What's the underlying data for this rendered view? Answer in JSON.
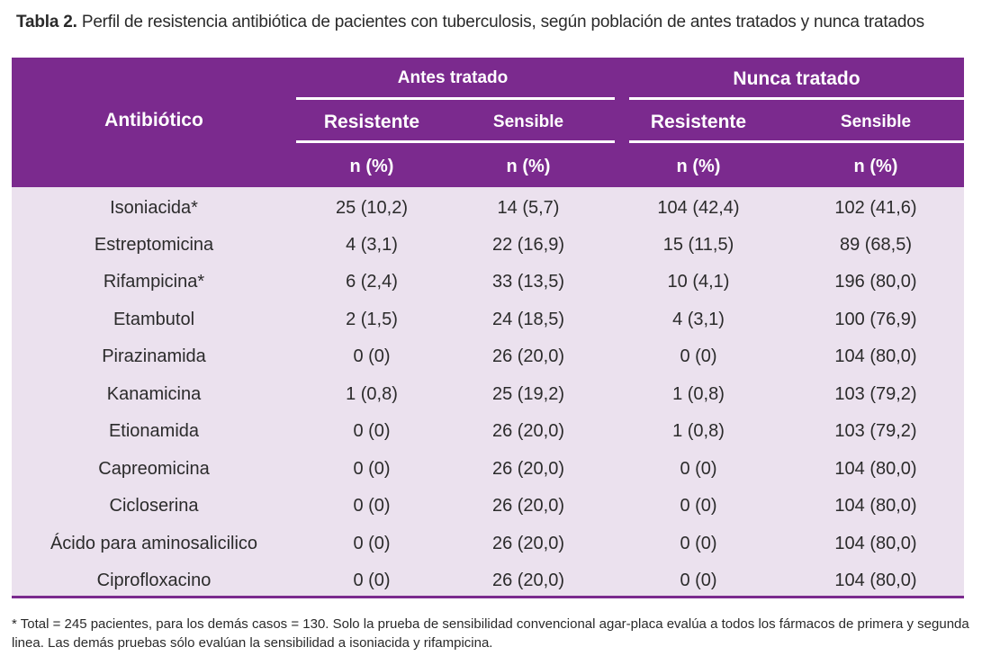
{
  "caption": {
    "label": "Tabla 2.",
    "text": "Perfil de resistencia antibiótica de pacientes con tuberculosis, según población de antes tratados y nunca tratados"
  },
  "table": {
    "headers": {
      "antibiotic": "Antibiótico",
      "group_antes": "Antes tratado",
      "group_nunca": "Nunca tratado",
      "resistente": "Resistente",
      "sensible": "Sensible",
      "n_pct": "n (%)"
    },
    "rows": [
      [
        "Isoniacida*",
        "25 (10,2)",
        "14 (5,7)",
        "104 (42,4)",
        "102 (41,6)"
      ],
      [
        "Estreptomicina",
        "4 (3,1)",
        "22 (16,9)",
        "15 (11,5)",
        "89 (68,5)"
      ],
      [
        "Rifampicina*",
        "6 (2,4)",
        "33 (13,5)",
        "10 (4,1)",
        "196 (80,0)"
      ],
      [
        "Etambutol",
        "2 (1,5)",
        "24 (18,5)",
        "4 (3,1)",
        "100 (76,9)"
      ],
      [
        "Pirazinamida",
        "0 (0)",
        "26 (20,0)",
        "0 (0)",
        "104 (80,0)"
      ],
      [
        "Kanamicina",
        "1 (0,8)",
        "25 (19,2)",
        "1 (0,8)",
        "103 (79,2)"
      ],
      [
        "Etionamida",
        "0 (0)",
        "26 (20,0)",
        "1 (0,8)",
        "103 (79,2)"
      ],
      [
        "Capreomicina",
        "0 (0)",
        "26 (20,0)",
        "0 (0)",
        "104 (80,0)"
      ],
      [
        "Cicloserina",
        "0 (0)",
        "26 (20,0)",
        "0 (0)",
        "104 (80,0)"
      ],
      [
        "Ácido para aminosalicilico",
        "0 (0)",
        "26 (20,0)",
        "0 (0)",
        "104 (80,0)"
      ],
      [
        "Ciprofloxacino",
        "0 (0)",
        "26 (20,0)",
        "0 (0)",
        "104 (80,0)"
      ]
    ]
  },
  "footnote": "* Total = 245 pacientes, para los demás casos = 130. Solo la prueba de sensibilidad convencional agar-placa evalúa a todos los fármacos de primera y segunda linea. Las demás pruebas sólo evalúan la sensibilidad a isoniacida y rifampicina.",
  "colors": {
    "header_bg": "#7b2a8e",
    "body_bg": "#ebe1ee",
    "header_text": "#ffffff"
  }
}
